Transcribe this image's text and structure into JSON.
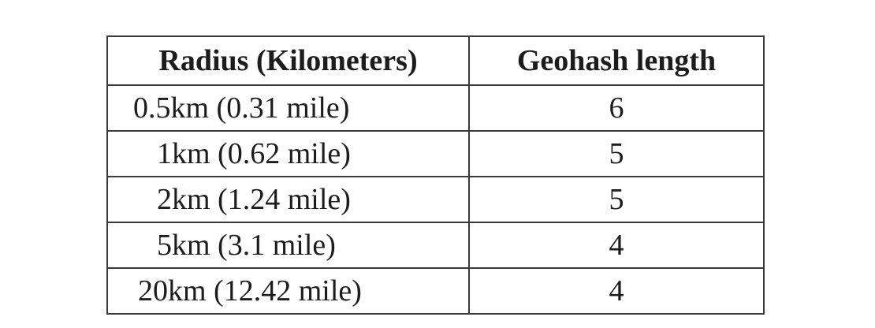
{
  "table": {
    "headers": {
      "radius": "Radius (Kilometers)",
      "length": "Geohash length"
    },
    "rows": [
      {
        "radius": "0.5km (0.31 mile)",
        "length": "6"
      },
      {
        "radius": "1km (0.62 mile)",
        "length": "5"
      },
      {
        "radius": "2km (1.24 mile)",
        "length": "5"
      },
      {
        "radius": "5km (3.1 mile)",
        "length": "4"
      },
      {
        "radius": "20km (12.42 mile)",
        "length": "4"
      }
    ]
  }
}
